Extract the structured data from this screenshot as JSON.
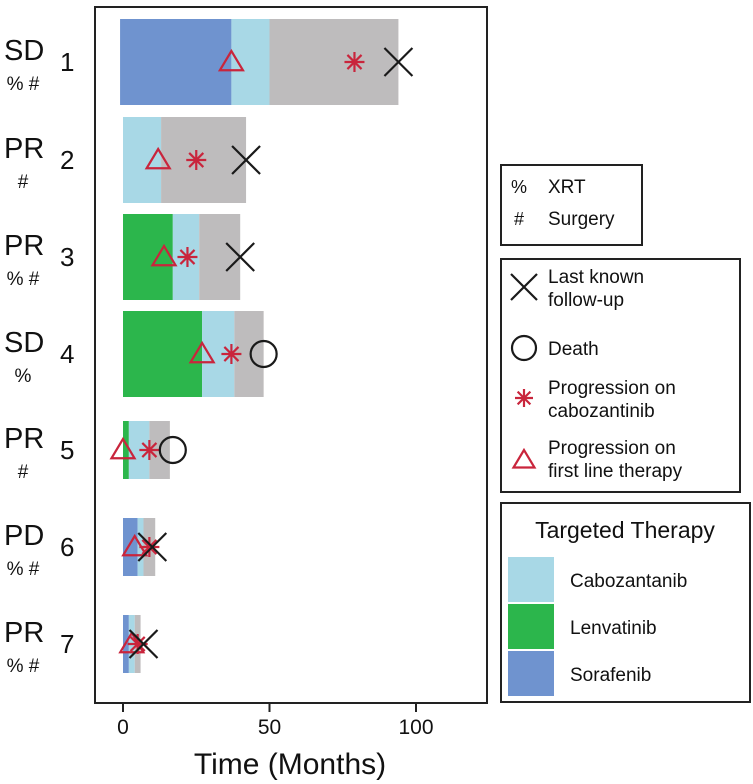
{
  "chart_data": {
    "type": "swimmer",
    "xlabel": "Time (Months)",
    "xlim": [
      -10,
      124
    ],
    "xticks": [
      0,
      50,
      100
    ],
    "patients": [
      {
        "id": "1",
        "response": "SD",
        "marks": "% #",
        "segments": [
          {
            "therapy": "Sorafenib",
            "start": -1,
            "end": 37
          },
          {
            "therapy": "Cabozantanib",
            "start": 37,
            "end": 50
          },
          {
            "therapy": "off",
            "start": 50,
            "end": 94
          }
        ],
        "first_line_progression": 37,
        "cabo_progression": 79,
        "outcome": "follow-up",
        "outcome_time": 94
      },
      {
        "id": "2",
        "response": "PR",
        "marks": "#",
        "segments": [
          {
            "therapy": "Cabozantanib",
            "start": 0,
            "end": 13
          },
          {
            "therapy": "off",
            "start": 13,
            "end": 42
          }
        ],
        "first_line_progression": 12,
        "cabo_progression": 25,
        "outcome": "follow-up",
        "outcome_time": 42
      },
      {
        "id": "3",
        "response": "PR",
        "marks": "% #",
        "segments": [
          {
            "therapy": "Lenvatinib",
            "start": 0,
            "end": 17
          },
          {
            "therapy": "Cabozantanib",
            "start": 17,
            "end": 26
          },
          {
            "therapy": "off",
            "start": 26,
            "end": 40
          }
        ],
        "first_line_progression": 14,
        "cabo_progression": 22,
        "outcome": "follow-up",
        "outcome_time": 40
      },
      {
        "id": "4",
        "response": "SD",
        "marks": "%",
        "segments": [
          {
            "therapy": "Lenvatinib",
            "start": 0,
            "end": 27
          },
          {
            "therapy": "Cabozantanib",
            "start": 27,
            "end": 38
          },
          {
            "therapy": "off",
            "start": 38,
            "end": 48
          }
        ],
        "first_line_progression": 27,
        "cabo_progression": 37,
        "outcome": "death",
        "outcome_time": 48
      },
      {
        "id": "5",
        "response": "PR",
        "marks": "#",
        "segments": [
          {
            "therapy": "Lenvatinib",
            "start": 0,
            "end": 2
          },
          {
            "therapy": "Cabozantanib",
            "start": 2,
            "end": 9
          },
          {
            "therapy": "off",
            "start": 9,
            "end": 16
          }
        ],
        "first_line_progression": 0,
        "cabo_progression": 9,
        "outcome": "death",
        "outcome_time": 17
      },
      {
        "id": "6",
        "response": "PD",
        "marks": "% #",
        "segments": [
          {
            "therapy": "Sorafenib",
            "start": 0,
            "end": 5
          },
          {
            "therapy": "Cabozantanib",
            "start": 5,
            "end": 7
          },
          {
            "therapy": "off",
            "start": 7,
            "end": 11
          }
        ],
        "first_line_progression": 4,
        "cabo_progression": 9,
        "outcome": "follow-up",
        "outcome_time": 10
      },
      {
        "id": "7",
        "response": "PR",
        "marks": "% #",
        "segments": [
          {
            "therapy": "Sorafenib",
            "start": 0,
            "end": 2
          },
          {
            "therapy": "Cabozantanib",
            "start": 2,
            "end": 4
          },
          {
            "therapy": "off",
            "start": 4,
            "end": 6
          }
        ],
        "first_line_progression": 3,
        "cabo_progression": 5,
        "outcome": "follow-up",
        "outcome_time": 7
      }
    ],
    "colors": {
      "Sorafenib": "#6f93cf",
      "Cabozantanib": "#a8d8e6",
      "Lenvatinib": "#2cb64c",
      "off": "#bebcbd",
      "marker_red": "#c9253c",
      "marker_black": "#1a1a1a"
    }
  },
  "legend_marks": [
    {
      "symbol": "%",
      "label": "XRT"
    },
    {
      "symbol": "#",
      "label": "Surgery"
    }
  ],
  "legend_markers": [
    {
      "type": "follow-up",
      "line1": "Last known",
      "line2": "follow-up"
    },
    {
      "type": "death",
      "line1": "Death",
      "line2": ""
    },
    {
      "type": "cabo",
      "line1": "Progression on",
      "line2": "cabozantinib"
    },
    {
      "type": "first",
      "line1": "Progression on",
      "line2": "first line therapy"
    }
  ],
  "legend_therapy": {
    "title": "Targeted Therapy",
    "items": [
      {
        "key": "Cabozantanib",
        "label": "Cabozantanib"
      },
      {
        "key": "Lenvatinib",
        "label": "Lenvatinib"
      },
      {
        "key": "Sorafenib",
        "label": "Sorafenib"
      }
    ]
  }
}
